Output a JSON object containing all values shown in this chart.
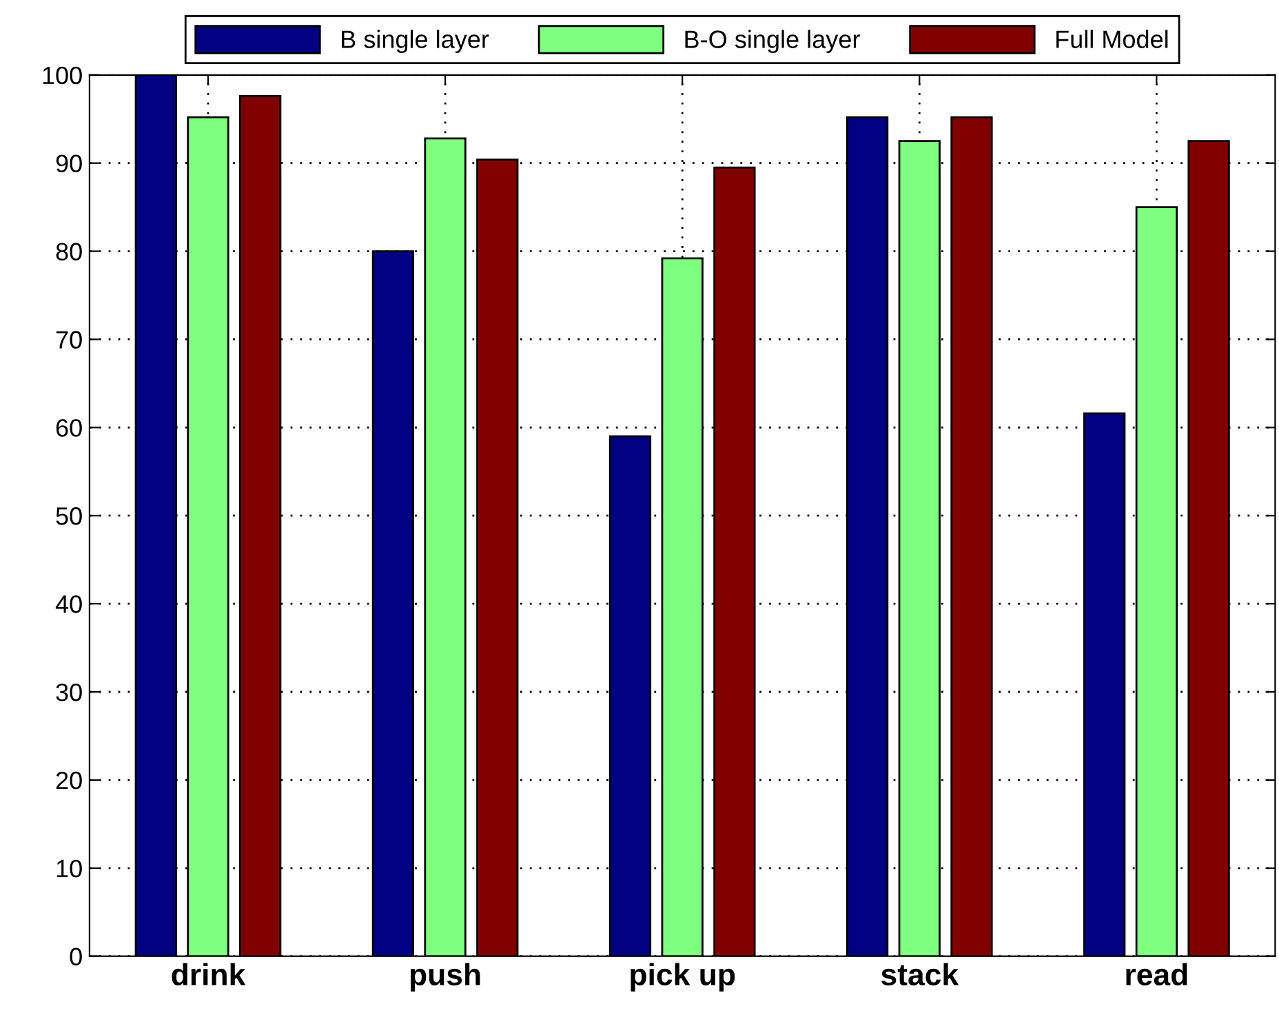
{
  "chart_data": {
    "type": "bar",
    "categories": [
      "drink",
      "push",
      "pick up",
      "stack",
      "read"
    ],
    "series": [
      {
        "name": "B single layer",
        "color": "#000080",
        "values": [
          100,
          80,
          59,
          95.2,
          61.6
        ]
      },
      {
        "name": "B-O single layer",
        "color": "#80ff80",
        "values": [
          95.2,
          92.8,
          79.2,
          92.5,
          85
        ]
      },
      {
        "name": "Full Model",
        "color": "#800000",
        "values": [
          97.6,
          90.4,
          89.5,
          95.2,
          92.5
        ]
      }
    ],
    "ylim": [
      0,
      100
    ],
    "yticks": [
      0,
      10,
      20,
      30,
      40,
      50,
      60,
      70,
      80,
      90,
      100
    ],
    "grid": true,
    "legend": "top"
  }
}
